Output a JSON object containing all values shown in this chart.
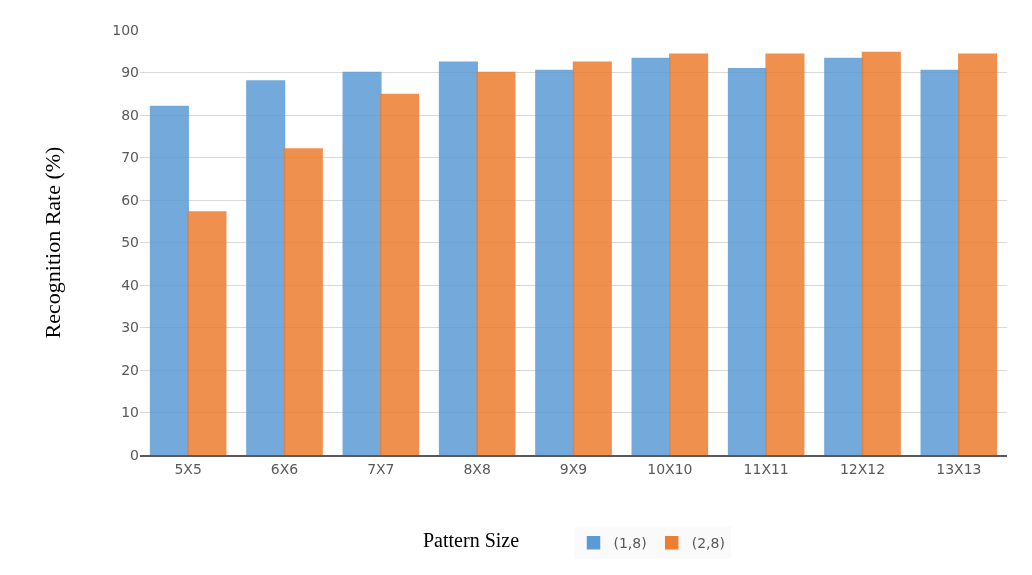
{
  "chart_data": {
    "type": "bar",
    "xlabel": "Pattern Size",
    "ylabel": "Recognition Rate (%)",
    "categories": [
      "5X5",
      "6X6",
      "7X7",
      "8X8",
      "9X9",
      "10X10",
      "11X11",
      "12X12",
      "13X13"
    ],
    "series": [
      {
        "name": "(1,8)",
        "color": "#5b9bd5",
        "values": [
          82,
          88,
          90,
          92.4,
          90.5,
          93.3,
          90.9,
          93.3,
          90.5
        ]
      },
      {
        "name": "(2,8)",
        "color": "#ed7d31",
        "values": [
          57.2,
          72,
          84.8,
          90,
          92.4,
          94.3,
          94.3,
          94.7,
          94.3
        ]
      }
    ],
    "ylim": [
      0,
      100
    ],
    "yticks": [
      0,
      10,
      20,
      30,
      40,
      50,
      60,
      70,
      80,
      90,
      100
    ],
    "grid": "y",
    "legend": "bottom"
  }
}
